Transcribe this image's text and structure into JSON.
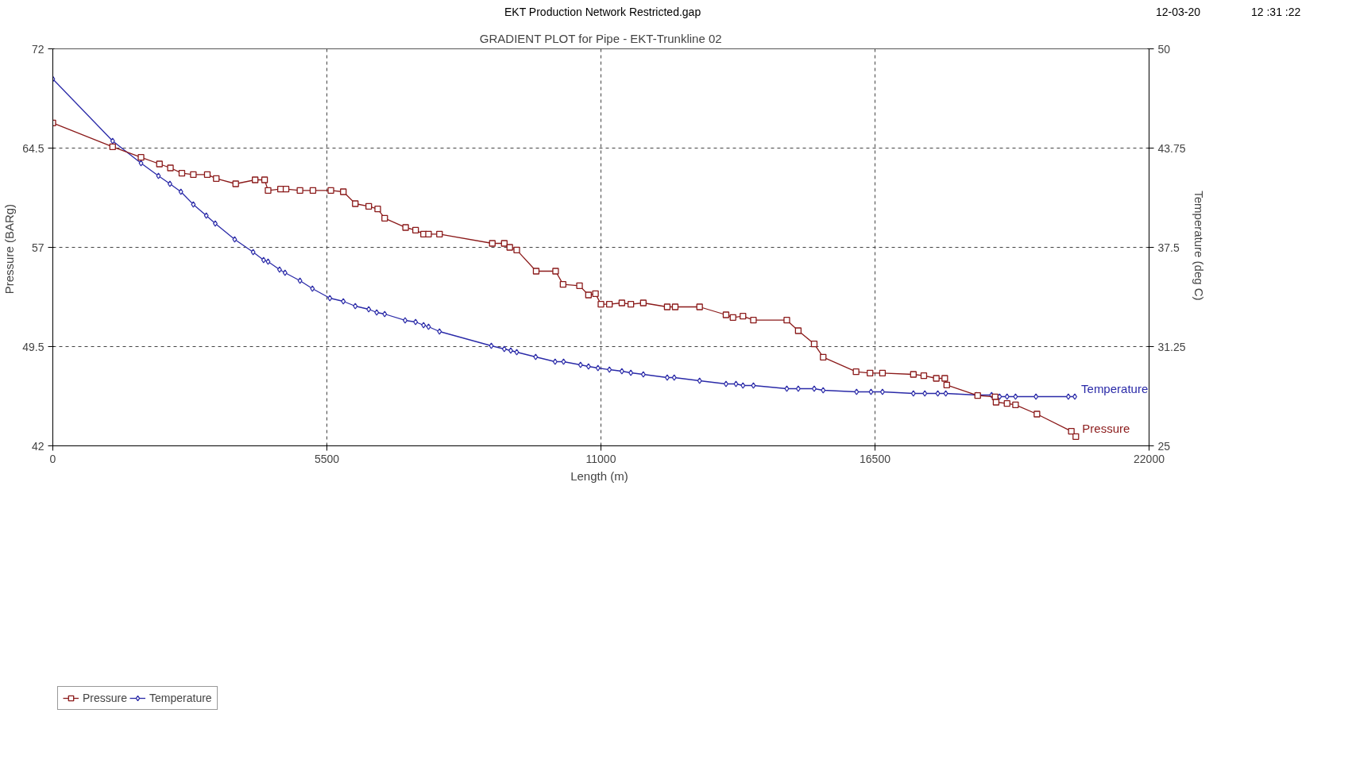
{
  "chart_data": {
    "type": "line",
    "title": "GRADIENT PLOT for Pipe - EKT-Trunkline 02",
    "xlabel": "Length  (m)",
    "ylabel": "Pressure  (BARg)",
    "y2label": "Temperature  (deg C)",
    "annotations": [
      "EKT Production Network Restricted.gap",
      "12-03-20",
      "12 :31 :22"
    ],
    "xlim": [
      0,
      22000
    ],
    "xticks": [
      0,
      5500,
      11000,
      16500,
      22000
    ],
    "ylim": [
      42,
      72
    ],
    "yticks": [
      42,
      49.5,
      57,
      64.5,
      72
    ],
    "y2lim": [
      25,
      50
    ],
    "y2ticks": [
      25,
      31.25,
      37.5,
      43.75,
      50
    ],
    "grid": true,
    "legend": "bottom",
    "line_style": "solid",
    "series": [
      {
        "name": "Pressure",
        "color": "#8b1a1a",
        "marker": "square",
        "x": [
          0,
          1200,
          1770,
          2140,
          2360,
          2590,
          2820,
          3100,
          3280,
          3670,
          4060,
          4250,
          4320,
          4570,
          4680,
          4960,
          5220,
          5580,
          5830,
          6070,
          6340,
          6520,
          6660,
          7080,
          7280,
          7440,
          7540,
          7760,
          8820,
          9060,
          9170,
          9310,
          9700,
          10090,
          10240,
          10570,
          10750,
          10890,
          11000,
          11170,
          11420,
          11600,
          11850,
          12330,
          12490,
          12980,
          13510,
          13650,
          13850,
          14060,
          14730,
          14960,
          15280,
          15460,
          16120,
          16400,
          16650,
          17270,
          17480,
          17730,
          17900,
          17940,
          18560,
          18910,
          18930,
          19150,
          19320,
          19750,
          20440,
          20530
        ],
        "values": [
          66.4,
          64.6,
          63.8,
          63.3,
          63.0,
          62.6,
          62.5,
          62.5,
          62.2,
          61.8,
          62.1,
          62.1,
          61.3,
          61.4,
          61.4,
          61.3,
          61.3,
          61.3,
          61.2,
          60.3,
          60.1,
          59.9,
          59.2,
          58.5,
          58.3,
          58.0,
          58.0,
          58.0,
          57.3,
          57.3,
          57.0,
          56.8,
          55.2,
          55.2,
          54.2,
          54.1,
          53.4,
          53.5,
          52.7,
          52.7,
          52.8,
          52.7,
          52.8,
          52.5,
          52.5,
          52.5,
          51.9,
          51.7,
          51.8,
          51.5,
          51.5,
          50.7,
          49.7,
          48.7,
          47.6,
          47.5,
          47.5,
          47.4,
          47.3,
          47.1,
          47.1,
          46.6,
          45.8,
          45.7,
          45.3,
          45.2,
          45.1,
          44.4,
          43.1,
          42.7
        ]
      },
      {
        "name": "Temperature",
        "color": "#2a2aa8",
        "marker": "diamond",
        "axis": "y2",
        "x": [
          0,
          1200,
          1770,
          2120,
          2350,
          2570,
          2820,
          3080,
          3260,
          3650,
          4020,
          4230,
          4320,
          4550,
          4660,
          4960,
          5210,
          5560,
          5830,
          6070,
          6340,
          6500,
          6660,
          7070,
          7280,
          7440,
          7540,
          7760,
          8800,
          9060,
          9190,
          9310,
          9690,
          10080,
          10250,
          10590,
          10750,
          10940,
          11170,
          11420,
          11600,
          11850,
          12330,
          12470,
          12980,
          13510,
          13710,
          13850,
          14060,
          14730,
          14960,
          15280,
          15460,
          16130,
          16420,
          16650,
          17270,
          17500,
          17760,
          17920,
          18540,
          18840,
          19000,
          19150,
          19320,
          19730,
          20380,
          20510
        ],
        "values": [
          48.1,
          44.2,
          42.8,
          42.0,
          41.5,
          41.0,
          40.2,
          39.5,
          39.0,
          38.0,
          37.2,
          36.7,
          36.6,
          36.1,
          35.9,
          35.4,
          34.9,
          34.3,
          34.1,
          33.8,
          33.6,
          33.4,
          33.3,
          32.9,
          32.8,
          32.6,
          32.5,
          32.2,
          31.3,
          31.1,
          31.0,
          30.9,
          30.6,
          30.3,
          30.3,
          30.1,
          30.0,
          29.9,
          29.8,
          29.7,
          29.6,
          29.5,
          29.3,
          29.3,
          29.1,
          28.9,
          28.9,
          28.8,
          28.8,
          28.6,
          28.6,
          28.6,
          28.5,
          28.4,
          28.4,
          28.4,
          28.3,
          28.3,
          28.3,
          28.3,
          28.2,
          28.2,
          28.1,
          28.1,
          28.1,
          28.1,
          28.1,
          28.1
        ]
      }
    ]
  }
}
